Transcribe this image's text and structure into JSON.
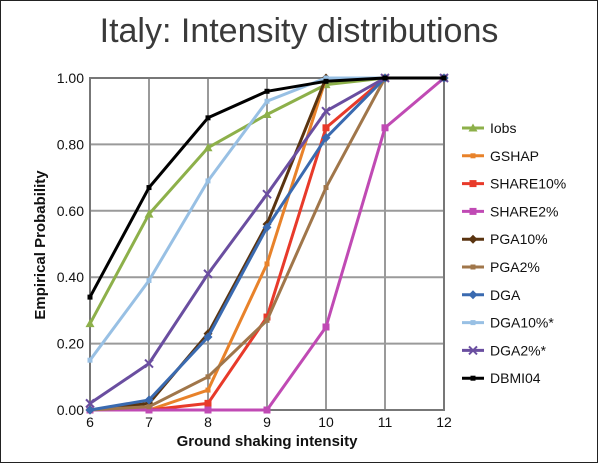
{
  "chart_data": {
    "type": "line",
    "title": "Italy: Intensity distributions",
    "xlabel": "Ground shaking intensity",
    "ylabel": "Empirical Probability",
    "x": [
      6,
      7,
      8,
      9,
      10,
      11,
      12
    ],
    "xlim": [
      6,
      12
    ],
    "ylim": [
      0,
      1
    ],
    "yticks": [
      "0.00",
      "0.20",
      "0.40",
      "0.60",
      "0.80",
      "1.00"
    ],
    "xticks": [
      "6",
      "7",
      "8",
      "9",
      "10",
      "11",
      "12"
    ],
    "grid": true,
    "legend_position": "right",
    "series": [
      {
        "name": "Iobs",
        "color": "#8db04a",
        "marker": "triangle",
        "values": [
          0.26,
          0.59,
          0.79,
          0.89,
          0.98,
          1.0,
          1.0
        ]
      },
      {
        "name": "GSHAP",
        "color": "#e8822a",
        "marker": "none",
        "values": [
          0.0,
          0.0,
          0.06,
          0.44,
          1.0,
          1.0,
          1.0
        ]
      },
      {
        "name": "SHARE10%",
        "color": "#e83a2a",
        "marker": "square",
        "values": [
          0.0,
          0.0,
          0.02,
          0.28,
          0.85,
          1.0,
          1.0
        ]
      },
      {
        "name": "SHARE2%",
        "color": "#c04ab4",
        "marker": "square",
        "values": [
          0.0,
          0.0,
          0.0,
          0.0,
          0.25,
          0.85,
          1.0
        ]
      },
      {
        "name": "PGA10%",
        "color": "#5a3410",
        "marker": "diamond",
        "values": [
          0.0,
          0.02,
          0.23,
          0.56,
          1.0,
          1.0,
          1.0
        ]
      },
      {
        "name": "PGA2%",
        "color": "#a0764a",
        "marker": "none",
        "values": [
          0.0,
          0.01,
          0.1,
          0.27,
          0.67,
          1.0,
          1.0
        ]
      },
      {
        "name": "DGA",
        "color": "#3a6ab0",
        "marker": "diamond",
        "values": [
          0.0,
          0.03,
          0.22,
          0.55,
          0.82,
          1.0,
          1.0
        ]
      },
      {
        "name": "DGA10%*",
        "color": "#98c0e4",
        "marker": "none",
        "values": [
          0.15,
          0.39,
          0.69,
          0.93,
          1.0,
          1.0,
          1.0
        ]
      },
      {
        "name": "DGA2%*",
        "color": "#6a4ea0",
        "marker": "x",
        "values": [
          0.02,
          0.14,
          0.41,
          0.65,
          0.9,
          1.0,
          1.0
        ]
      },
      {
        "name": "DBMI04",
        "color": "#000000",
        "marker": "none",
        "values": [
          0.34,
          0.67,
          0.88,
          0.96,
          0.99,
          1.0,
          1.0
        ]
      }
    ]
  }
}
